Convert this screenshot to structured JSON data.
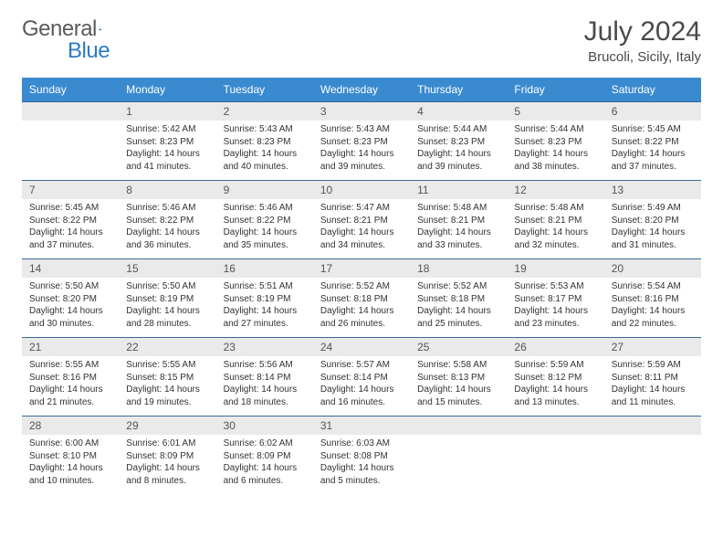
{
  "brand": {
    "word1": "General",
    "word2": "Blue"
  },
  "title": "July 2024",
  "location": "Brucoli, Sicily, Italy",
  "colors": {
    "header_bg": "#3a8ad0",
    "header_text": "#ffffff",
    "daynum_bg": "#eaeaea",
    "row_border": "#3a6a9a",
    "logo_gray": "#5a5a5a",
    "logo_blue": "#2d7bc5"
  },
  "weekdays": [
    "Sunday",
    "Monday",
    "Tuesday",
    "Wednesday",
    "Thursday",
    "Friday",
    "Saturday"
  ],
  "weeks": [
    [
      {
        "n": "",
        "sr": "",
        "ss": "",
        "dl": ""
      },
      {
        "n": "1",
        "sr": "5:42 AM",
        "ss": "8:23 PM",
        "dl": "14 hours and 41 minutes."
      },
      {
        "n": "2",
        "sr": "5:43 AM",
        "ss": "8:23 PM",
        "dl": "14 hours and 40 minutes."
      },
      {
        "n": "3",
        "sr": "5:43 AM",
        "ss": "8:23 PM",
        "dl": "14 hours and 39 minutes."
      },
      {
        "n": "4",
        "sr": "5:44 AM",
        "ss": "8:23 PM",
        "dl": "14 hours and 39 minutes."
      },
      {
        "n": "5",
        "sr": "5:44 AM",
        "ss": "8:23 PM",
        "dl": "14 hours and 38 minutes."
      },
      {
        "n": "6",
        "sr": "5:45 AM",
        "ss": "8:22 PM",
        "dl": "14 hours and 37 minutes."
      }
    ],
    [
      {
        "n": "7",
        "sr": "5:45 AM",
        "ss": "8:22 PM",
        "dl": "14 hours and 37 minutes."
      },
      {
        "n": "8",
        "sr": "5:46 AM",
        "ss": "8:22 PM",
        "dl": "14 hours and 36 minutes."
      },
      {
        "n": "9",
        "sr": "5:46 AM",
        "ss": "8:22 PM",
        "dl": "14 hours and 35 minutes."
      },
      {
        "n": "10",
        "sr": "5:47 AM",
        "ss": "8:21 PM",
        "dl": "14 hours and 34 minutes."
      },
      {
        "n": "11",
        "sr": "5:48 AM",
        "ss": "8:21 PM",
        "dl": "14 hours and 33 minutes."
      },
      {
        "n": "12",
        "sr": "5:48 AM",
        "ss": "8:21 PM",
        "dl": "14 hours and 32 minutes."
      },
      {
        "n": "13",
        "sr": "5:49 AM",
        "ss": "8:20 PM",
        "dl": "14 hours and 31 minutes."
      }
    ],
    [
      {
        "n": "14",
        "sr": "5:50 AM",
        "ss": "8:20 PM",
        "dl": "14 hours and 30 minutes."
      },
      {
        "n": "15",
        "sr": "5:50 AM",
        "ss": "8:19 PM",
        "dl": "14 hours and 28 minutes."
      },
      {
        "n": "16",
        "sr": "5:51 AM",
        "ss": "8:19 PM",
        "dl": "14 hours and 27 minutes."
      },
      {
        "n": "17",
        "sr": "5:52 AM",
        "ss": "8:18 PM",
        "dl": "14 hours and 26 minutes."
      },
      {
        "n": "18",
        "sr": "5:52 AM",
        "ss": "8:18 PM",
        "dl": "14 hours and 25 minutes."
      },
      {
        "n": "19",
        "sr": "5:53 AM",
        "ss": "8:17 PM",
        "dl": "14 hours and 23 minutes."
      },
      {
        "n": "20",
        "sr": "5:54 AM",
        "ss": "8:16 PM",
        "dl": "14 hours and 22 minutes."
      }
    ],
    [
      {
        "n": "21",
        "sr": "5:55 AM",
        "ss": "8:16 PM",
        "dl": "14 hours and 21 minutes."
      },
      {
        "n": "22",
        "sr": "5:55 AM",
        "ss": "8:15 PM",
        "dl": "14 hours and 19 minutes."
      },
      {
        "n": "23",
        "sr": "5:56 AM",
        "ss": "8:14 PM",
        "dl": "14 hours and 18 minutes."
      },
      {
        "n": "24",
        "sr": "5:57 AM",
        "ss": "8:14 PM",
        "dl": "14 hours and 16 minutes."
      },
      {
        "n": "25",
        "sr": "5:58 AM",
        "ss": "8:13 PM",
        "dl": "14 hours and 15 minutes."
      },
      {
        "n": "26",
        "sr": "5:59 AM",
        "ss": "8:12 PM",
        "dl": "14 hours and 13 minutes."
      },
      {
        "n": "27",
        "sr": "5:59 AM",
        "ss": "8:11 PM",
        "dl": "14 hours and 11 minutes."
      }
    ],
    [
      {
        "n": "28",
        "sr": "6:00 AM",
        "ss": "8:10 PM",
        "dl": "14 hours and 10 minutes."
      },
      {
        "n": "29",
        "sr": "6:01 AM",
        "ss": "8:09 PM",
        "dl": "14 hours and 8 minutes."
      },
      {
        "n": "30",
        "sr": "6:02 AM",
        "ss": "8:09 PM",
        "dl": "14 hours and 6 minutes."
      },
      {
        "n": "31",
        "sr": "6:03 AM",
        "ss": "8:08 PM",
        "dl": "14 hours and 5 minutes."
      },
      {
        "n": "",
        "sr": "",
        "ss": "",
        "dl": ""
      },
      {
        "n": "",
        "sr": "",
        "ss": "",
        "dl": ""
      },
      {
        "n": "",
        "sr": "",
        "ss": "",
        "dl": ""
      }
    ]
  ],
  "labels": {
    "sunrise": "Sunrise:",
    "sunset": "Sunset:",
    "daylight": "Daylight:"
  }
}
